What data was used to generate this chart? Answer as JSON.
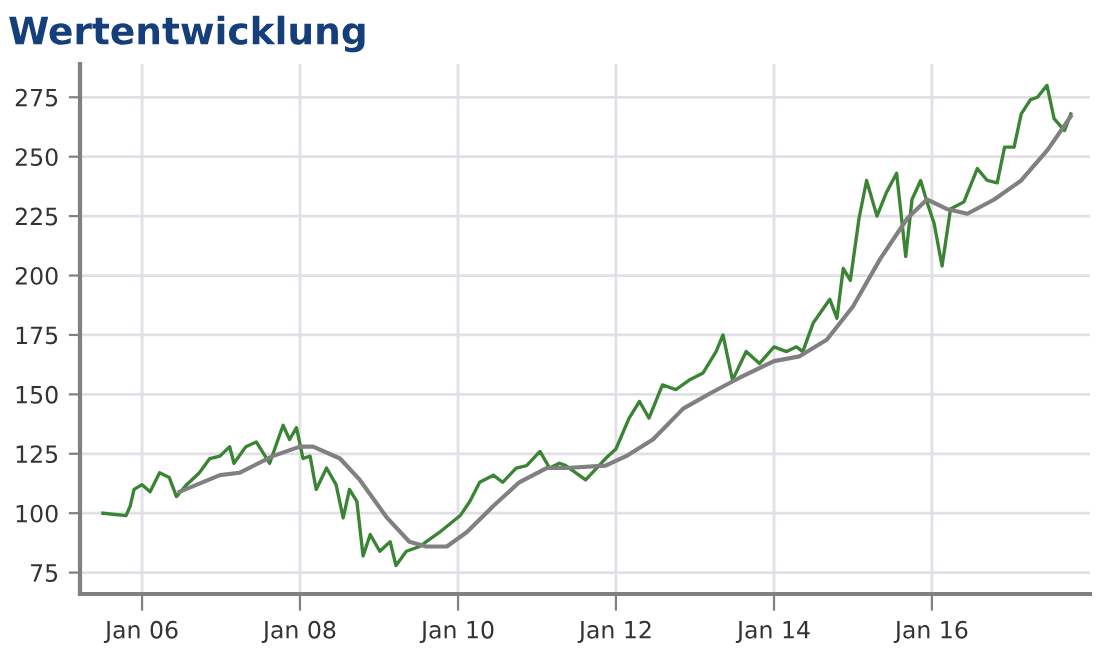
{
  "chart_data": {
    "type": "line",
    "title": "Wertentwicklung",
    "xlim": [
      "2005-03-20",
      "2018-01-01"
    ],
    "ylim": [
      66,
      289
    ],
    "xticks": [
      {
        "value": "2006-01-01",
        "label": "Jan 06"
      },
      {
        "value": "2008-01-01",
        "label": "Jan 08"
      },
      {
        "value": "2010-01-01",
        "label": "Jan 10"
      },
      {
        "value": "2012-01-01",
        "label": "Jan 12"
      },
      {
        "value": "2014-01-01",
        "label": "Jan 14"
      },
      {
        "value": "2016-01-01",
        "label": "Jan 16"
      }
    ],
    "yticks": [
      75,
      100,
      125,
      150,
      175,
      200,
      225,
      250,
      275
    ],
    "grid": true,
    "marker": "none",
    "line_style": "solid",
    "series": [
      {
        "color": "#3a8434",
        "x": [
          "2005-07-04",
          "2005-10-19",
          "2005-11-07",
          "2005-11-25",
          "2006-01-01",
          "2006-02-07",
          "2006-03-23",
          "2006-05-07",
          "2006-06-09",
          "2006-07-26",
          "2006-09-23",
          "2006-11-10",
          "2006-12-27",
          "2007-02-10",
          "2007-03-02",
          "2007-04-26",
          "2007-06-13",
          "2007-08-14",
          "2007-10-15",
          "2007-11-14",
          "2007-12-16",
          "2008-01-15",
          "2008-02-17",
          "2008-03-16",
          "2008-05-03",
          "2008-06-16",
          "2008-07-19",
          "2008-08-17",
          "2008-09-20",
          "2008-10-19",
          "2008-11-21",
          "2009-01-04",
          "2009-02-21",
          "2009-03-20",
          "2009-05-07",
          "2009-07-08",
          "2009-10-08",
          "2010-01-11",
          "2010-02-25",
          "2010-04-11",
          "2010-06-13",
          "2010-07-26",
          "2010-09-27",
          "2010-11-14",
          "2011-01-15",
          "2011-02-28",
          "2011-04-15",
          "2011-05-14",
          "2011-08-14",
          "2011-11-14",
          "2012-01-01",
          "2012-03-02",
          "2012-04-19",
          "2012-06-02",
          "2012-08-03",
          "2012-10-04",
          "2012-12-05",
          "2013-02-07",
          "2013-04-08",
          "2013-05-10",
          "2013-06-23",
          "2013-08-25",
          "2013-10-26",
          "2014-01-01",
          "2014-02-28",
          "2014-04-15",
          "2014-05-14",
          "2014-07-01",
          "2014-09-16",
          "2014-10-19",
          "2014-11-17",
          "2014-12-20",
          "2015-01-29",
          "2015-03-05",
          "2015-04-22",
          "2015-06-05",
          "2015-07-22",
          "2015-09-02",
          "2015-10-01",
          "2015-11-10",
          "2015-12-09",
          "2016-01-11",
          "2016-02-17",
          "2016-03-27",
          "2016-05-28",
          "2016-07-29",
          "2016-09-13",
          "2016-10-29",
          "2016-12-02",
          "2017-01-15",
          "2017-02-17",
          "2017-04-01",
          "2017-05-03",
          "2017-06-16",
          "2017-07-19",
          "2017-09-05",
          "2017-10-04"
        ],
        "values": [
          100,
          99,
          103,
          110,
          112,
          109,
          117,
          115,
          107,
          112,
          117,
          123,
          124,
          128,
          121,
          128,
          130,
          121,
          137,
          131,
          136,
          123,
          124,
          110,
          119,
          112,
          98,
          110,
          105,
          82,
          91,
          84,
          88,
          78,
          84,
          86,
          92,
          99,
          105,
          113,
          116,
          113,
          119,
          120,
          126,
          119,
          121,
          120,
          114,
          123,
          127,
          140,
          147,
          140,
          154,
          152,
          156,
          159,
          168,
          175,
          156,
          168,
          163,
          170,
          168,
          170,
          168,
          180,
          190,
          182,
          203,
          198,
          224,
          240,
          225,
          235,
          243,
          208,
          232,
          240,
          231,
          222,
          204,
          228,
          231,
          245,
          240,
          239,
          254,
          254,
          268,
          274,
          275,
          280,
          266,
          261,
          268
        ]
      },
      {
        "color": "#808080",
        "x": [
          "2006-06-23",
          "2006-12-27",
          "2007-03-27",
          "2007-08-28",
          "2008-01-01",
          "2008-03-02",
          "2008-07-04",
          "2008-10-04",
          "2009-02-07",
          "2009-05-21",
          "2009-08-07",
          "2009-11-10",
          "2010-02-10",
          "2010-06-13",
          "2010-10-11",
          "2011-02-14",
          "2011-05-14",
          "2011-11-14",
          "2012-02-17",
          "2012-06-20",
          "2012-11-07",
          "2013-03-23",
          "2013-07-26",
          "2014-01-01",
          "2014-04-29",
          "2014-09-02",
          "2015-01-01",
          "2015-05-07",
          "2015-09-09",
          "2015-12-09",
          "2016-03-09",
          "2016-06-13",
          "2016-10-15",
          "2017-02-17",
          "2017-06-20",
          "2017-10-04"
        ],
        "values": [
          109,
          116,
          117,
          124,
          128,
          128,
          123,
          114,
          98,
          88,
          86,
          86,
          92,
          103,
          113,
          119,
          119,
          120,
          124,
          131,
          144,
          151,
          157,
          164,
          166,
          173,
          187,
          207,
          224,
          232,
          228,
          226,
          232,
          240,
          253,
          267
        ]
      }
    ]
  }
}
